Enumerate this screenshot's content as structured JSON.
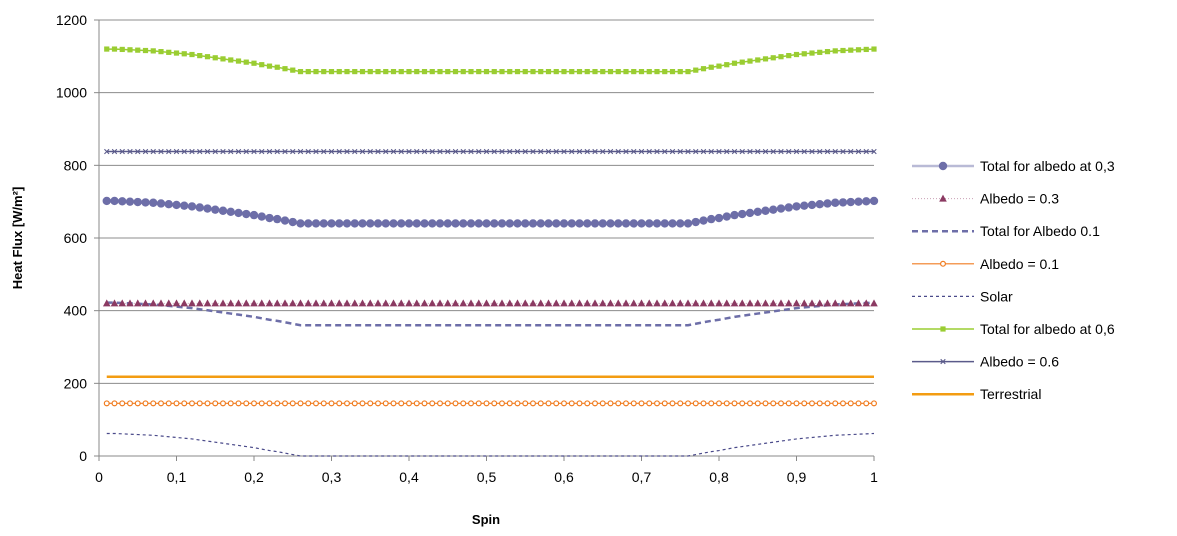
{
  "chart_data": {
    "type": "line",
    "title": "",
    "xlabel": "Spin",
    "ylabel": "Heat Flux [W/m²]",
    "xlim": [
      0,
      1
    ],
    "ylim": [
      0,
      1200
    ],
    "xticks": [
      0,
      0.1,
      0.2,
      0.3,
      0.4,
      0.5,
      0.6,
      0.7,
      0.8,
      0.9,
      1
    ],
    "xtick_labels": [
      "0",
      "0,1",
      "0,2",
      "0,3",
      "0,4",
      "0,5",
      "0,6",
      "0,7",
      "0,8",
      "0,9",
      "1"
    ],
    "yticks": [
      0,
      200,
      400,
      600,
      800,
      1000,
      1200
    ],
    "ytick_labels": [
      "0",
      "200",
      "400",
      "600",
      "800",
      "1000",
      "1200"
    ],
    "grid": "horizontal",
    "legend_position": "right",
    "x": [
      0.01,
      0.02,
      0.03,
      0.04,
      0.05,
      0.06,
      0.07,
      0.08,
      0.09,
      0.1,
      0.11,
      0.12,
      0.13,
      0.14,
      0.15,
      0.16,
      0.17,
      0.18,
      0.19,
      0.2,
      0.21,
      0.22,
      0.23,
      0.24,
      0.25,
      0.26,
      0.27,
      0.28,
      0.29,
      0.3,
      0.31,
      0.32,
      0.33,
      0.34,
      0.35,
      0.36,
      0.37,
      0.38,
      0.39,
      0.4,
      0.41,
      0.42,
      0.43,
      0.44,
      0.45,
      0.46,
      0.47,
      0.48,
      0.49,
      0.5,
      0.51,
      0.52,
      0.53,
      0.54,
      0.55,
      0.56,
      0.57,
      0.58,
      0.59,
      0.6,
      0.61,
      0.62,
      0.63,
      0.64,
      0.65,
      0.66,
      0.67,
      0.68,
      0.69,
      0.7,
      0.71,
      0.72,
      0.73,
      0.74,
      0.75,
      0.76,
      0.77,
      0.78,
      0.79,
      0.8,
      0.81,
      0.82,
      0.83,
      0.84,
      0.85,
      0.86,
      0.87,
      0.88,
      0.89,
      0.9,
      0.91,
      0.92,
      0.93,
      0.94,
      0.95,
      0.96,
      0.97,
      0.98,
      0.99,
      1.0
    ],
    "series": [
      {
        "name": "Total for albedo at 0,3",
        "color": "#6d6ea8",
        "line": "solid",
        "line_color": "#b9bad6",
        "marker": "circle",
        "values": [
          702,
          702,
          701,
          700,
          699,
          698,
          697,
          695,
          693,
          691,
          689,
          687,
          684,
          681,
          678,
          675,
          672,
          669,
          666,
          663,
          659,
          655,
          652,
          648,
          644,
          640,
          640,
          640,
          640,
          640,
          640,
          640,
          640,
          640,
          640,
          640,
          640,
          640,
          640,
          640,
          640,
          640,
          640,
          640,
          640,
          640,
          640,
          640,
          640,
          640,
          640,
          640,
          640,
          640,
          640,
          640,
          640,
          640,
          640,
          640,
          640,
          640,
          640,
          640,
          640,
          640,
          640,
          640,
          640,
          640,
          640,
          640,
          640,
          640,
          640,
          640,
          644,
          648,
          652,
          655,
          659,
          663,
          666,
          669,
          672,
          675,
          678,
          681,
          684,
          687,
          689,
          691,
          693,
          695,
          697,
          698,
          699,
          700,
          701,
          702
        ]
      },
      {
        "name": "Albedo = 0.3",
        "color": "#8b3a62",
        "line": "dotted",
        "line_color": "#c9a1b5",
        "marker": "triangle",
        "constant": 420
      },
      {
        "name": "Total for Albedo 0.1",
        "color": "#6d6ea8",
        "line": "dashed",
        "line_color": "#6d6ea8",
        "marker": "none",
        "values": [
          422,
          422,
          421,
          420,
          419,
          418,
          417,
          415,
          413,
          411,
          409,
          407,
          404,
          401,
          398,
          395,
          392,
          389,
          386,
          383,
          379,
          375,
          372,
          368,
          364,
          360,
          360,
          360,
          360,
          360,
          360,
          360,
          360,
          360,
          360,
          360,
          360,
          360,
          360,
          360,
          360,
          360,
          360,
          360,
          360,
          360,
          360,
          360,
          360,
          360,
          360,
          360,
          360,
          360,
          360,
          360,
          360,
          360,
          360,
          360,
          360,
          360,
          360,
          360,
          360,
          360,
          360,
          360,
          360,
          360,
          360,
          360,
          360,
          360,
          360,
          360,
          364,
          368,
          372,
          375,
          379,
          383,
          386,
          389,
          392,
          395,
          398,
          401,
          404,
          407,
          409,
          411,
          413,
          415,
          417,
          418,
          419,
          420,
          421,
          422
        ]
      },
      {
        "name": "Albedo = 0.1",
        "color": "#f07c20",
        "line": "solid",
        "line_color": "#f07c20",
        "marker": "open-circle",
        "constant": 145
      },
      {
        "name": "Solar",
        "color": "#4a4a8a",
        "line": "dashed",
        "line_color": "#4a4a8a",
        "marker": "none",
        "values": [
          62,
          62,
          61,
          60,
          59,
          58,
          57,
          55,
          53,
          51,
          49,
          47,
          44,
          41,
          38,
          35,
          32,
          29,
          26,
          23,
          19,
          15,
          12,
          8,
          4,
          0,
          0,
          0,
          0,
          0,
          0,
          0,
          0,
          0,
          0,
          0,
          0,
          0,
          0,
          0,
          0,
          0,
          0,
          0,
          0,
          0,
          0,
          0,
          0,
          0,
          0,
          0,
          0,
          0,
          0,
          0,
          0,
          0,
          0,
          0,
          0,
          0,
          0,
          0,
          0,
          0,
          0,
          0,
          0,
          0,
          0,
          0,
          0,
          0,
          0,
          0,
          4,
          8,
          12,
          15,
          19,
          23,
          26,
          29,
          32,
          35,
          38,
          41,
          44,
          47,
          49,
          51,
          53,
          55,
          57,
          58,
          59,
          60,
          61,
          62
        ]
      },
      {
        "name": "Total for albedo at 0,6",
        "color": "#9acd32",
        "line": "solid",
        "line_color": "#9acd32",
        "marker": "square",
        "values": [
          1120,
          1120,
          1119,
          1118,
          1117,
          1116,
          1115,
          1113,
          1111,
          1109,
          1107,
          1105,
          1102,
          1099,
          1096,
          1093,
          1090,
          1087,
          1084,
          1081,
          1077,
          1073,
          1070,
          1066,
          1062,
          1058,
          1058,
          1058,
          1058,
          1058,
          1058,
          1058,
          1058,
          1058,
          1058,
          1058,
          1058,
          1058,
          1058,
          1058,
          1058,
          1058,
          1058,
          1058,
          1058,
          1058,
          1058,
          1058,
          1058,
          1058,
          1058,
          1058,
          1058,
          1058,
          1058,
          1058,
          1058,
          1058,
          1058,
          1058,
          1058,
          1058,
          1058,
          1058,
          1058,
          1058,
          1058,
          1058,
          1058,
          1058,
          1058,
          1058,
          1058,
          1058,
          1058,
          1058,
          1062,
          1066,
          1070,
          1073,
          1077,
          1081,
          1084,
          1087,
          1090,
          1093,
          1096,
          1099,
          1102,
          1105,
          1107,
          1109,
          1111,
          1113,
          1115,
          1116,
          1117,
          1118,
          1119,
          1120
        ]
      },
      {
        "name": "Albedo = 0.6",
        "color": "#5a5a8a",
        "line": "solid",
        "line_color": "#5a5a8a",
        "marker": "x",
        "constant": 838
      },
      {
        "name": "Terrestrial",
        "color": "#f39c12",
        "line": "solid",
        "line_color": "#f39c12",
        "marker": "none",
        "constant": 218
      }
    ]
  }
}
